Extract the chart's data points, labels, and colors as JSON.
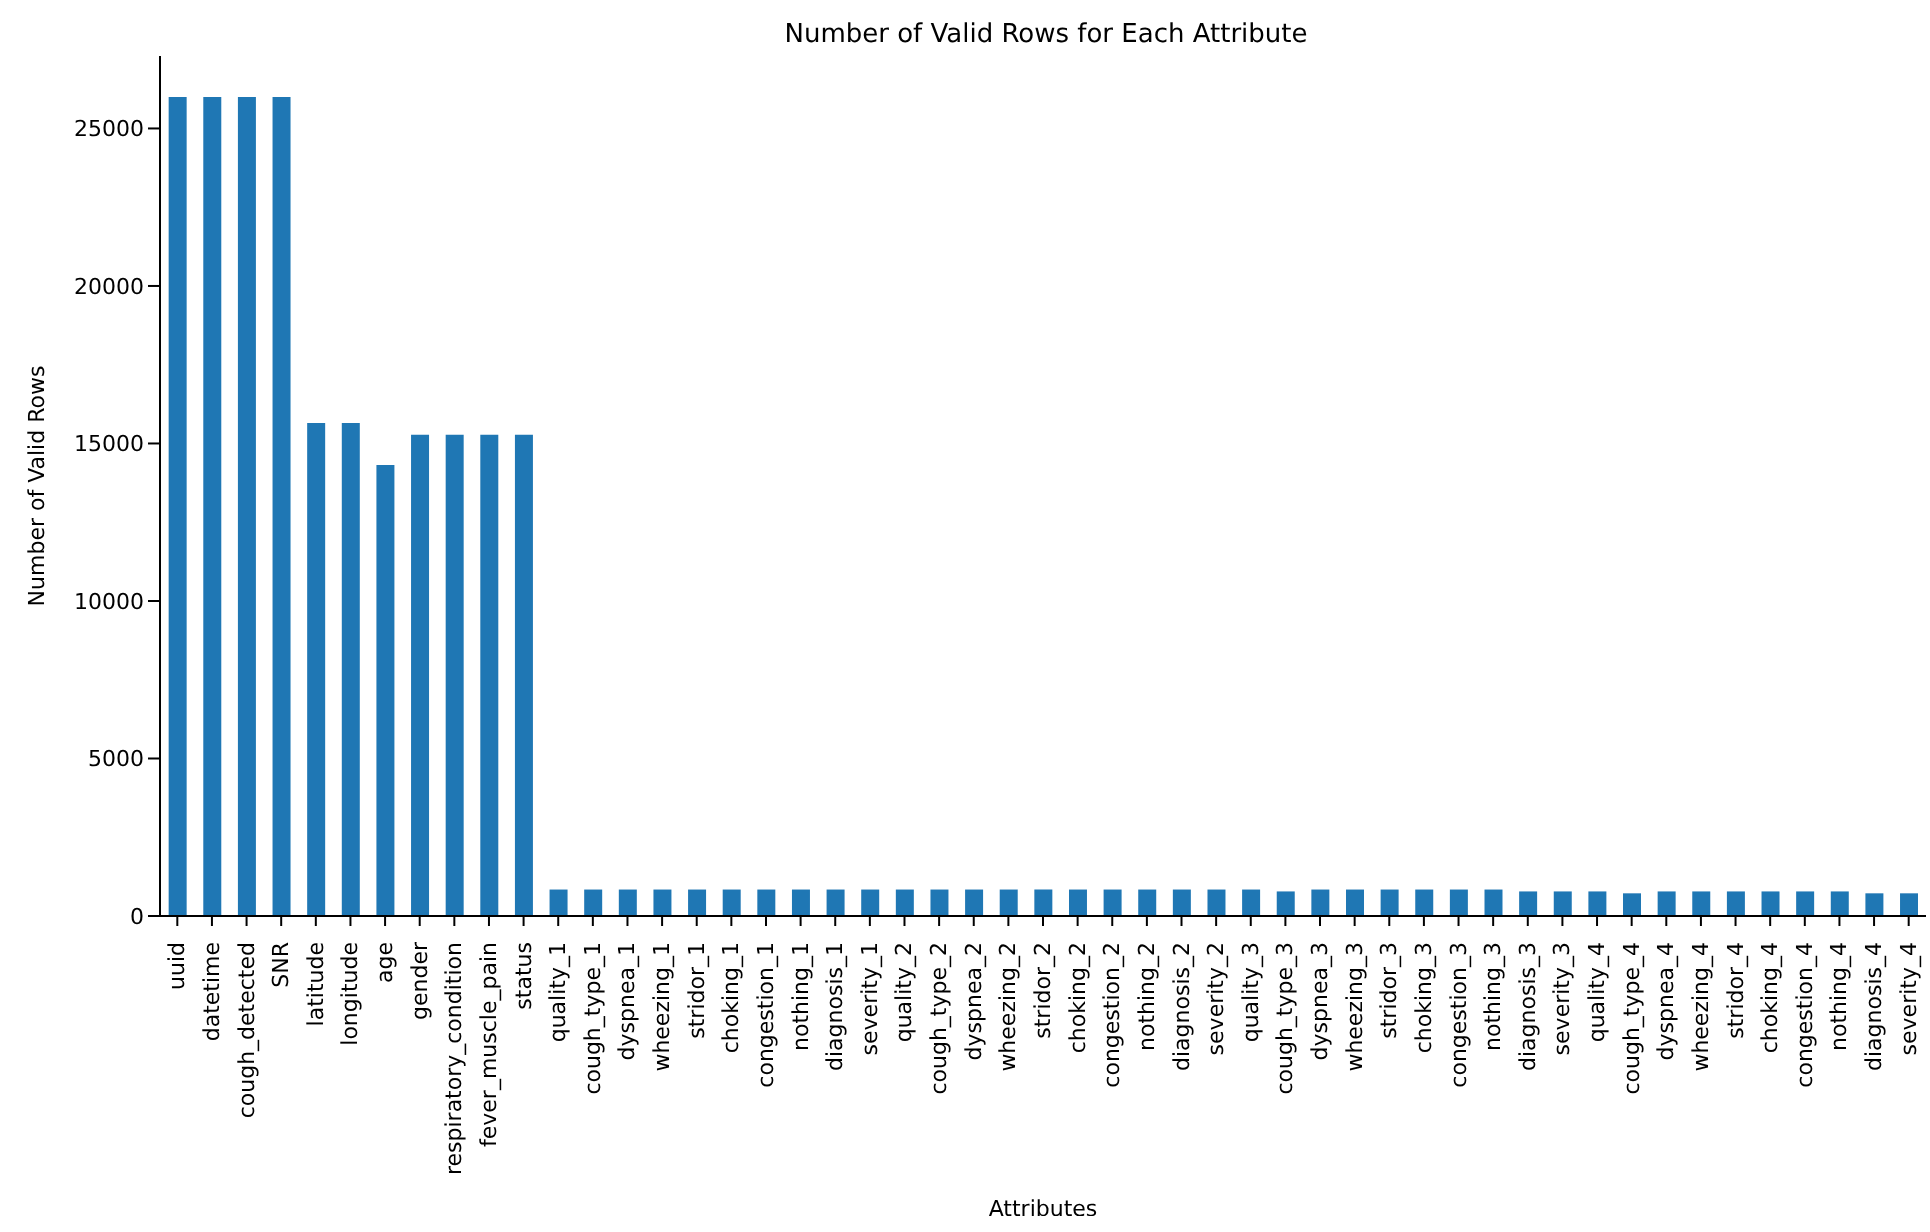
{
  "chart_data": {
    "type": "bar",
    "title": "Number of Valid Rows for Each Attribute",
    "xlabel": "Attributes",
    "ylabel": "Number of Valid Rows",
    "categories": [
      "uuid",
      "datetime",
      "cough_detected",
      "SNR",
      "latitude",
      "longitude",
      "age",
      "gender",
      "respiratory_condition",
      "fever_muscle_pain",
      "status",
      "quality_1",
      "cough_type_1",
      "dyspnea_1",
      "wheezing_1",
      "stridor_1",
      "choking_1",
      "congestion_1",
      "nothing_1",
      "diagnosis_1",
      "severity_1",
      "quality_2",
      "cough_type_2",
      "dyspnea_2",
      "wheezing_2",
      "stridor_2",
      "choking_2",
      "congestion_2",
      "nothing_2",
      "diagnosis_2",
      "severity_2",
      "quality_3",
      "cough_type_3",
      "dyspnea_3",
      "wheezing_3",
      "stridor_3",
      "choking_3",
      "congestion_3",
      "nothing_3",
      "diagnosis_3",
      "severity_3",
      "quality_4",
      "cough_type_4",
      "dyspnea_4",
      "wheezing_4",
      "stridor_4",
      "choking_4",
      "congestion_4",
      "nothing_4",
      "diagnosis_4",
      "severity_4"
    ],
    "values": [
      26000,
      26000,
      26000,
      26000,
      15650,
      15650,
      14320,
      15280,
      15280,
      15280,
      15280,
      840,
      840,
      840,
      840,
      840,
      840,
      840,
      840,
      840,
      840,
      840,
      840,
      840,
      840,
      840,
      840,
      840,
      840,
      840,
      840,
      840,
      780,
      840,
      840,
      840,
      840,
      840,
      840,
      780,
      780,
      780,
      720,
      780,
      780,
      780,
      780,
      780,
      780,
      720,
      720
    ],
    "color": "#1f77b4",
    "ylim": [
      0,
      27300
    ],
    "yticks": [
      0,
      5000,
      10000,
      15000,
      20000,
      25000
    ],
    "grid": false
  }
}
